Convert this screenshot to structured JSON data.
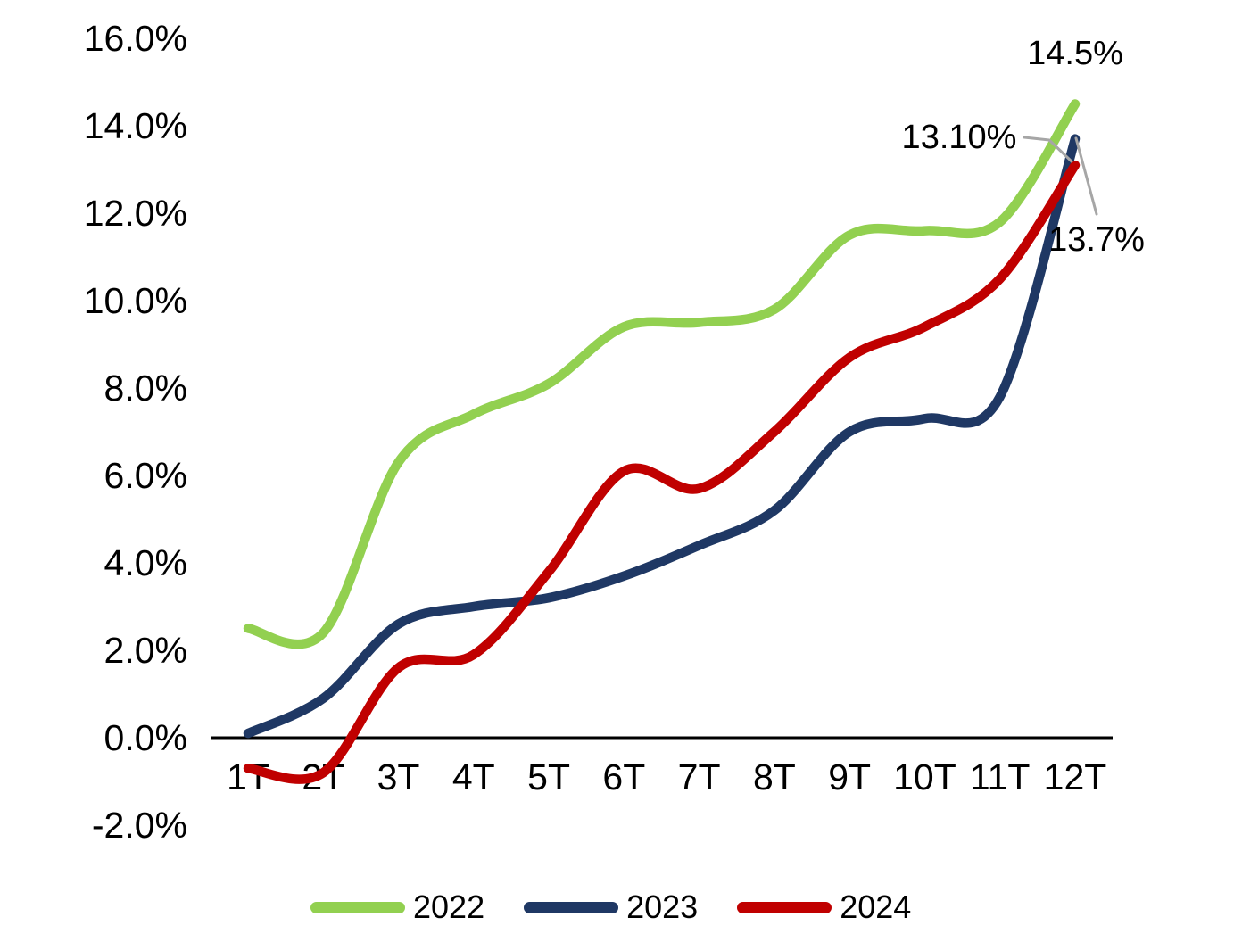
{
  "chart_data": {
    "type": "line",
    "title": "",
    "categories": [
      "1T",
      "2T",
      "3T",
      "4T",
      "5T",
      "6T",
      "7T",
      "8T",
      "9T",
      "10T",
      "11T",
      "12T"
    ],
    "series": [
      {
        "name": "2022",
        "color": "#92D050",
        "values": [
          2.5,
          2.4,
          6.3,
          7.4,
          8.1,
          9.4,
          9.5,
          9.8,
          11.5,
          11.6,
          11.8,
          14.5
        ]
      },
      {
        "name": "2023",
        "color": "#1F3864",
        "values": [
          0.1,
          0.9,
          2.6,
          3.0,
          3.2,
          3.7,
          4.4,
          5.2,
          7.0,
          7.3,
          7.8,
          13.7
        ]
      },
      {
        "name": "2024",
        "color": "#C00000",
        "values": [
          -0.7,
          -0.8,
          1.6,
          1.9,
          3.8,
          6.1,
          5.7,
          7.0,
          8.7,
          9.4,
          10.5,
          13.1
        ]
      }
    ],
    "y_axis": {
      "ticks": [
        {
          "value": 16,
          "label": "16.0%"
        },
        {
          "value": 14,
          "label": "14.0%"
        },
        {
          "value": 12,
          "label": "12.0%"
        },
        {
          "value": 10,
          "label": "10.0%"
        },
        {
          "value": 8,
          "label": "8.0%"
        },
        {
          "value": 6,
          "label": "6.0%"
        },
        {
          "value": 4,
          "label": "4.0%"
        },
        {
          "value": 2,
          "label": "2.0%"
        },
        {
          "value": 0,
          "label": "0.0%"
        },
        {
          "value": -2,
          "label": "-2.0%"
        }
      ],
      "range": [
        -2,
        16
      ],
      "format": "percent"
    },
    "grid": false,
    "axis_color": "#000000",
    "background": "#FFFFFF",
    "legend": {
      "position": "bottom"
    },
    "annotations": [
      {
        "text": "14.5%",
        "series": "2022",
        "point": "12T",
        "leader": false
      },
      {
        "text": "13.10%",
        "series": "2024",
        "point": "12T",
        "leader": true,
        "leader_color": "#A6A6A6"
      },
      {
        "text": "13.7%",
        "series": "2023",
        "point": "12T",
        "leader": true,
        "leader_color": "#A6A6A6"
      }
    ]
  }
}
